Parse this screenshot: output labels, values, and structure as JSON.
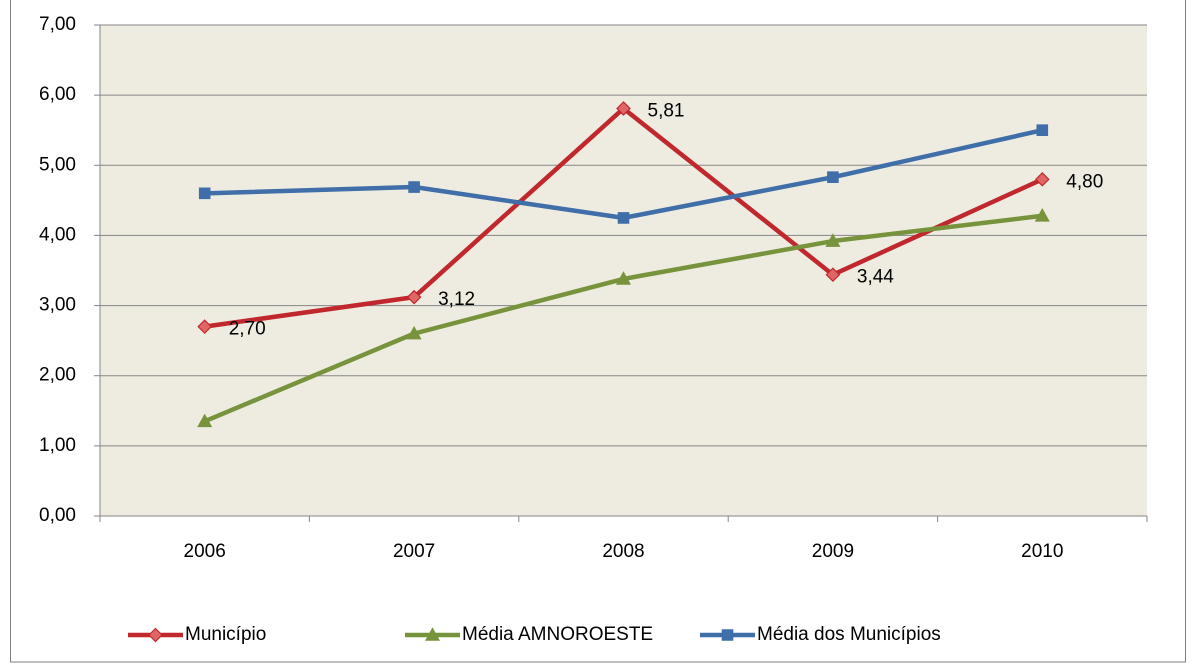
{
  "chart_data": {
    "type": "line",
    "categories": [
      "2006",
      "2007",
      "2008",
      "2009",
      "2010"
    ],
    "series": [
      {
        "name": "Município",
        "color": "#c0282d",
        "marker": "diamond",
        "values": [
          2.7,
          3.12,
          5.81,
          3.44,
          4.8
        ],
        "value_labels": [
          "2,70",
          "3,12",
          "5,81",
          "3,44",
          "4,80"
        ]
      },
      {
        "name": "Média AMNOROESTE",
        "color": "#77933c",
        "marker": "triangle",
        "values": [
          1.35,
          2.6,
          3.38,
          3.92,
          4.28
        ]
      },
      {
        "name": "Média dos Municípios",
        "color": "#3f6ea8",
        "marker": "square",
        "values": [
          4.6,
          4.69,
          4.25,
          4.83,
          5.5
        ]
      }
    ],
    "ylim": [
      0,
      7
    ],
    "yticks": [
      {
        "value": 0,
        "label": "0,00"
      },
      {
        "value": 1,
        "label": "1,00"
      },
      {
        "value": 2,
        "label": "2,00"
      },
      {
        "value": 3,
        "label": "3,00"
      },
      {
        "value": 4,
        "label": "4,00"
      },
      {
        "value": 5,
        "label": "5,00"
      },
      {
        "value": 6,
        "label": "6,00"
      },
      {
        "value": 7,
        "label": "7,00"
      }
    ],
    "grid": true,
    "legend": "bottom"
  }
}
